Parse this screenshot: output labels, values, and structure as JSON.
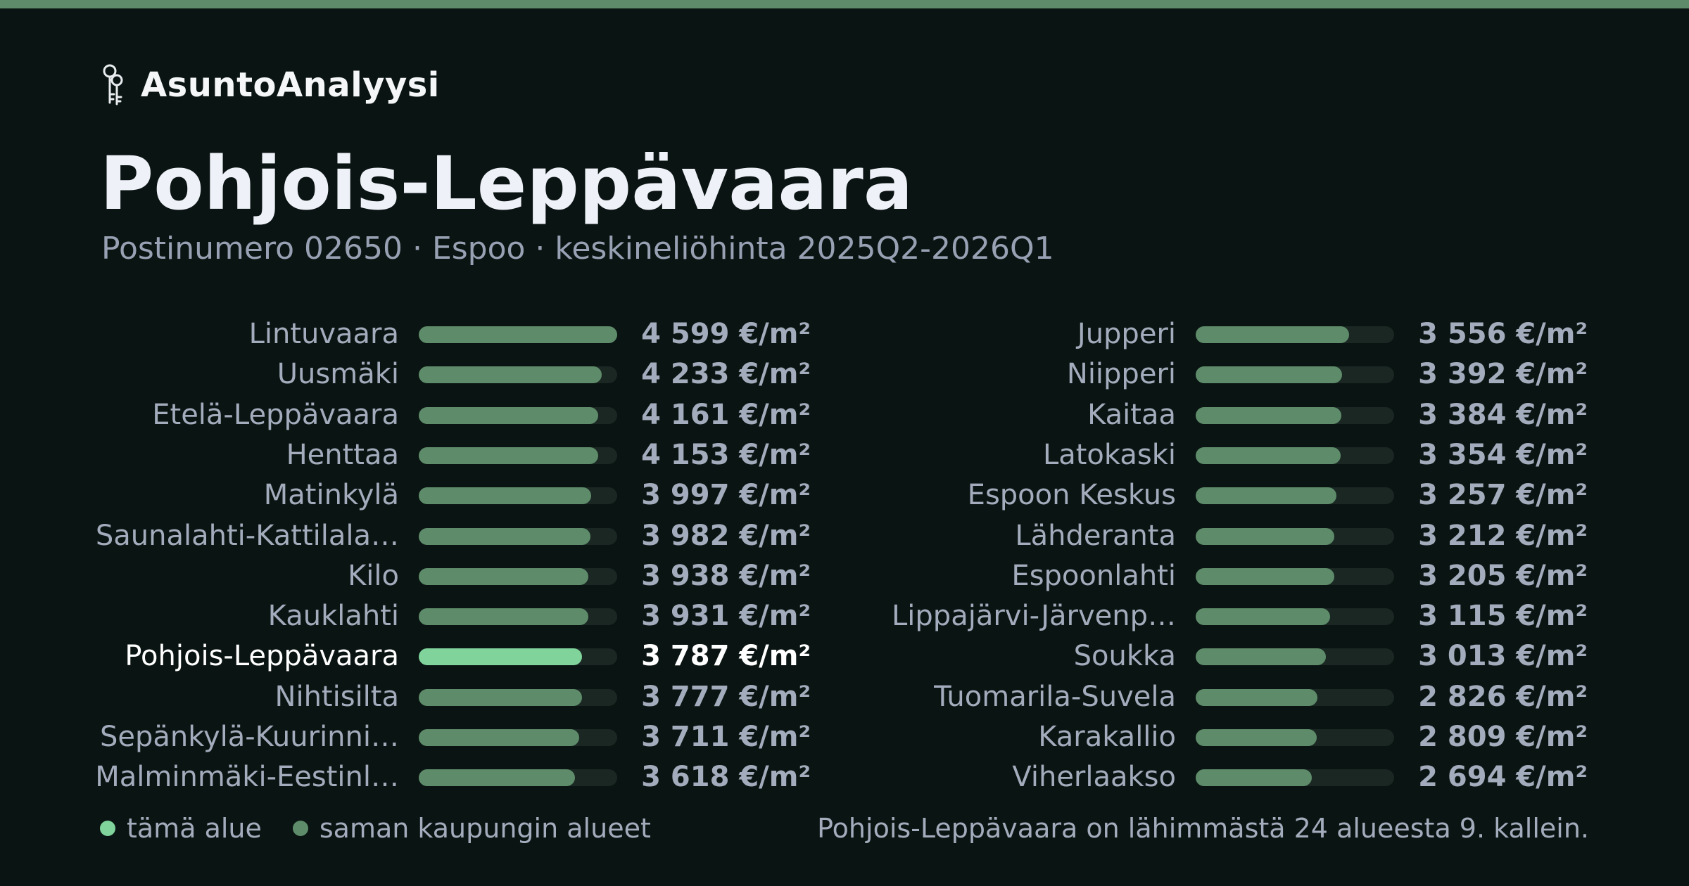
{
  "brand": {
    "name": "AsuntoAnalyysi",
    "icon": "keys-icon"
  },
  "header": {
    "title": "Pohjois-Leppävaara",
    "subtitle": "Postinumero 02650 · Espoo · keskineliöhinta 2025Q2-2026Q1"
  },
  "colors": {
    "bar": "#5e8c6a",
    "highlight": "#7fd39b",
    "track": "#1a2723",
    "background": "#0a1412"
  },
  "chart_data": {
    "type": "bar",
    "orientation": "horizontal",
    "unit": "€/m²",
    "highlight_index": 8,
    "max": 4599,
    "categories": [
      "Lintuvaara",
      "Uusmäki",
      "Etelä-Leppävaara",
      "Henttaa",
      "Matinkylä",
      "Saunalahti-Kattilala…",
      "Kilo",
      "Kauklahti",
      "Pohjois-Leppävaara",
      "Nihtisilta",
      "Sepänkylä-Kuurinni…",
      "Malminmäki-Eestinl…",
      "Jupperi",
      "Niipperi",
      "Kaitaa",
      "Latokaski",
      "Espoon Keskus",
      "Lähderanta",
      "Espoonlahti",
      "Lippajärvi-Järvenp…",
      "Soukka",
      "Tuomarila-Suvela",
      "Karakallio",
      "Viherlaakso"
    ],
    "values": [
      4599,
      4233,
      4161,
      4153,
      3997,
      3982,
      3938,
      3931,
      3787,
      3777,
      3711,
      3618,
      3556,
      3392,
      3384,
      3354,
      3257,
      3212,
      3205,
      3115,
      3013,
      2826,
      2809,
      2694
    ],
    "value_labels": [
      "4 599 €/m²",
      "4 233 €/m²",
      "4 161 €/m²",
      "4 153 €/m²",
      "3 997 €/m²",
      "3 982 €/m²",
      "3 938 €/m²",
      "3 931 €/m²",
      "3 787 €/m²",
      "3 777 €/m²",
      "3 711 €/m²",
      "3 618 €/m²",
      "3 556 €/m²",
      "3 392 €/m²",
      "3 384 €/m²",
      "3 354 €/m²",
      "3 257 €/m²",
      "3 212 €/m²",
      "3 205 €/m²",
      "3 115 €/m²",
      "3 013 €/m²",
      "2 826 €/m²",
      "2 809 €/m²",
      "2 694 €/m²"
    ],
    "legend": [
      {
        "label": "tämä alue",
        "color": "#7fd39b"
      },
      {
        "label": "saman kaupungin alueet",
        "color": "#5e8c6a"
      }
    ]
  },
  "footnote": "Pohjois-Leppävaara on lähimmästä 24 alueesta 9. kallein."
}
